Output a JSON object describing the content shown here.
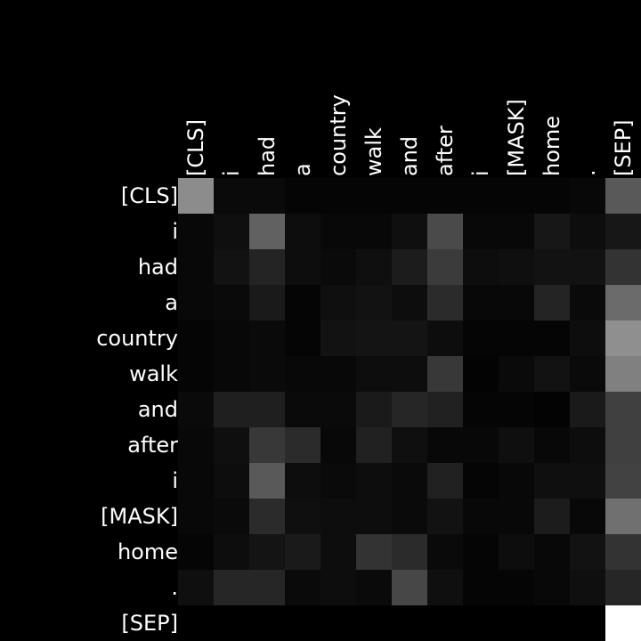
{
  "chart_data": {
    "type": "heatmap",
    "title": "",
    "xlabel": "",
    "ylabel": "",
    "colormap": "grayscale (black = 0, white = 1)",
    "range": [
      0,
      1
    ],
    "grid": false,
    "x_labels": [
      "[CLS]",
      "i",
      "had",
      "a",
      "country",
      "walk",
      "and",
      "after",
      "i",
      "[MASK]",
      "home",
      ".",
      "[SEP]"
    ],
    "y_labels": [
      "[CLS]",
      "i",
      "had",
      "a",
      "country",
      "walk",
      "and",
      "after",
      "i",
      "[MASK]",
      "home",
      ".",
      "[SEP]"
    ],
    "values": [
      [
        0.55,
        0.04,
        0.04,
        0.02,
        0.02,
        0.02,
        0.02,
        0.02,
        0.02,
        0.02,
        0.02,
        0.03,
        0.35
      ],
      [
        0.03,
        0.06,
        0.38,
        0.05,
        0.03,
        0.03,
        0.06,
        0.29,
        0.03,
        0.03,
        0.09,
        0.05,
        0.09
      ],
      [
        0.03,
        0.07,
        0.14,
        0.05,
        0.04,
        0.06,
        0.11,
        0.23,
        0.05,
        0.06,
        0.07,
        0.07,
        0.2
      ],
      [
        0.03,
        0.04,
        0.1,
        0.02,
        0.06,
        0.07,
        0.05,
        0.17,
        0.03,
        0.03,
        0.14,
        0.04,
        0.42
      ],
      [
        0.02,
        0.03,
        0.04,
        0.02,
        0.07,
        0.08,
        0.08,
        0.05,
        0.02,
        0.02,
        0.02,
        0.05,
        0.56
      ],
      [
        0.02,
        0.03,
        0.04,
        0.03,
        0.03,
        0.05,
        0.05,
        0.22,
        0.01,
        0.04,
        0.07,
        0.04,
        0.5
      ],
      [
        0.04,
        0.12,
        0.12,
        0.04,
        0.04,
        0.1,
        0.15,
        0.13,
        0.02,
        0.02,
        0.01,
        0.1,
        0.25
      ],
      [
        0.03,
        0.06,
        0.22,
        0.17,
        0.03,
        0.13,
        0.06,
        0.03,
        0.03,
        0.06,
        0.03,
        0.05,
        0.25
      ],
      [
        0.03,
        0.05,
        0.35,
        0.05,
        0.04,
        0.05,
        0.04,
        0.13,
        0.02,
        0.03,
        0.06,
        0.06,
        0.26
      ],
      [
        0.03,
        0.04,
        0.17,
        0.06,
        0.05,
        0.05,
        0.04,
        0.07,
        0.03,
        0.03,
        0.11,
        0.03,
        0.44
      ],
      [
        0.02,
        0.05,
        0.08,
        0.1,
        0.05,
        0.2,
        0.17,
        0.04,
        0.02,
        0.05,
        0.03,
        0.07,
        0.2
      ],
      [
        0.06,
        0.15,
        0.15,
        0.04,
        0.05,
        0.04,
        0.28,
        0.06,
        0.02,
        0.02,
        0.03,
        0.06,
        0.15
      ],
      [
        0.0,
        0.0,
        0.0,
        0.0,
        0.0,
        0.0,
        0.0,
        0.0,
        0.0,
        0.0,
        0.0,
        0.0,
        1.0
      ]
    ]
  }
}
